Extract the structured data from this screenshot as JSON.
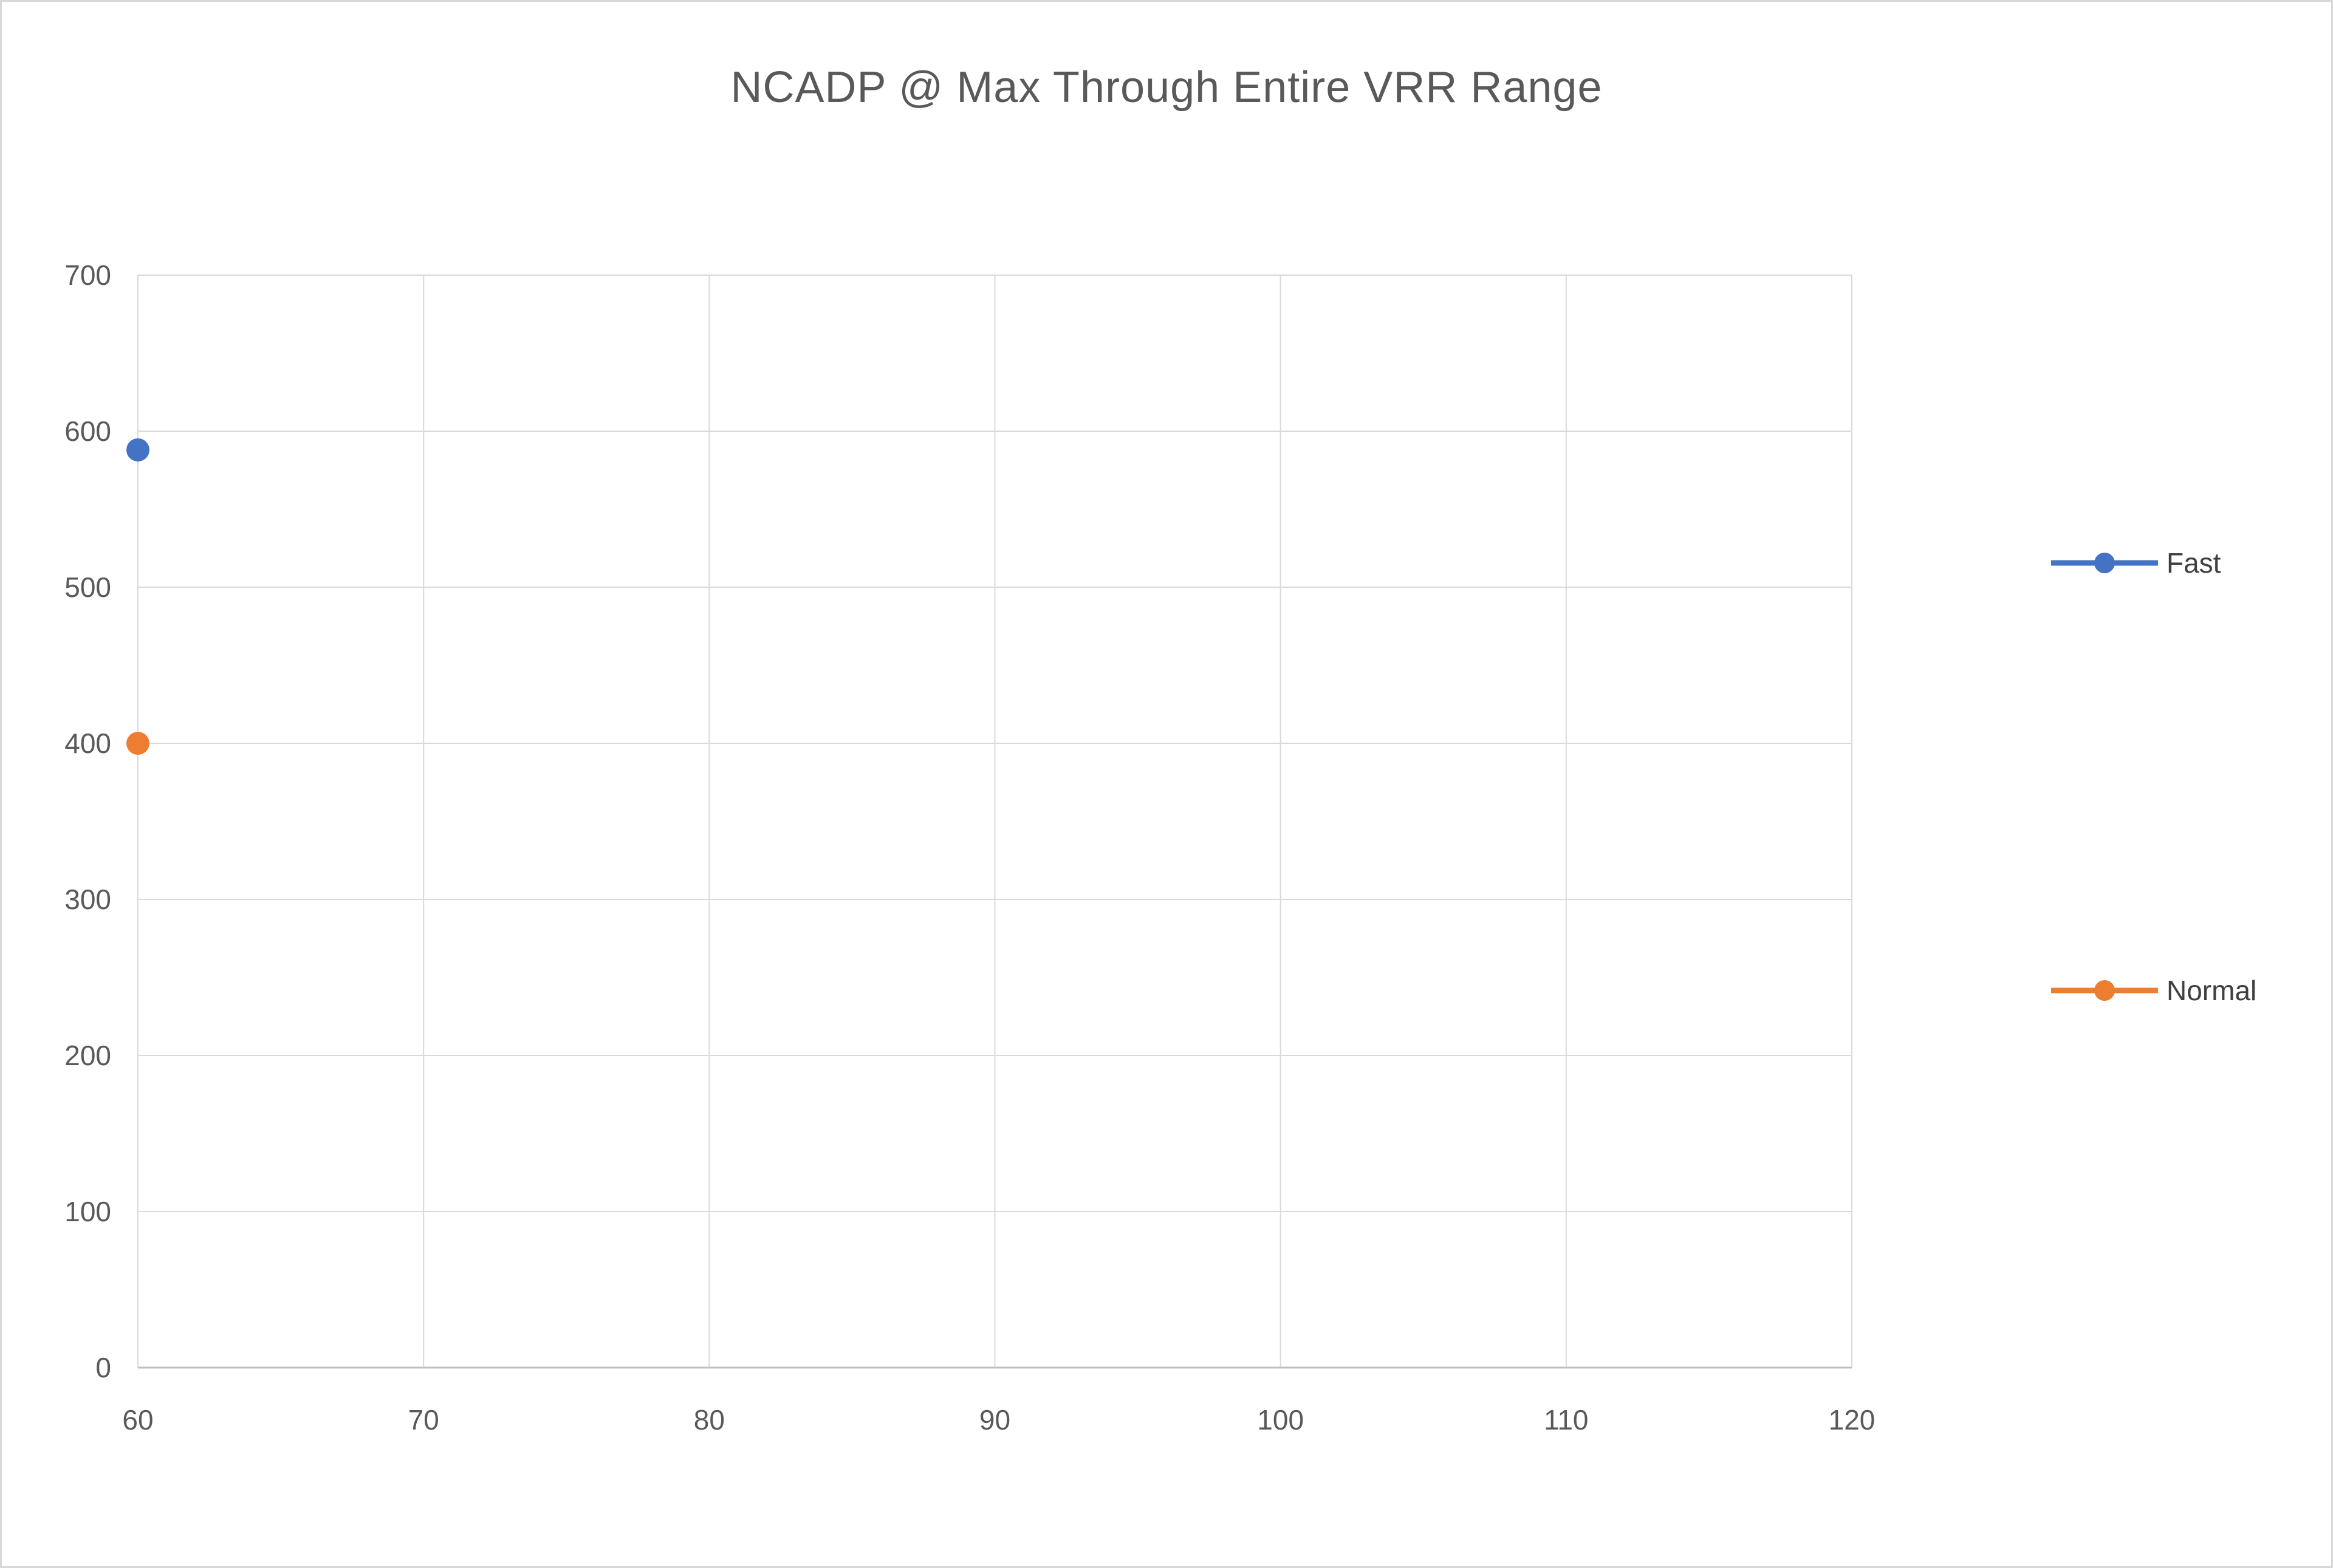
{
  "chart_data": {
    "type": "scatter",
    "title": "NCADP @ Max Through Entire VRR Range",
    "xlabel": "",
    "ylabel": "",
    "xlim": [
      60,
      120
    ],
    "ylim": [
      0,
      700
    ],
    "xticks": [
      60,
      70,
      80,
      90,
      100,
      110,
      120
    ],
    "yticks": [
      0,
      100,
      200,
      300,
      400,
      500,
      600,
      700
    ],
    "grid": true,
    "legend_position": "right",
    "colors": {
      "grid": "#d9d9d9",
      "axis": "#bfbfbf",
      "title_text": "#595959",
      "tick_text": "#595959"
    },
    "series": [
      {
        "name": "fast",
        "label": "Fast",
        "color": "#4472C4",
        "points": [
          [
            60,
            588
          ]
        ]
      },
      {
        "name": "normal",
        "label": "Normal",
        "color": "#ED7D31",
        "points": [
          [
            60,
            400
          ]
        ]
      }
    ]
  }
}
